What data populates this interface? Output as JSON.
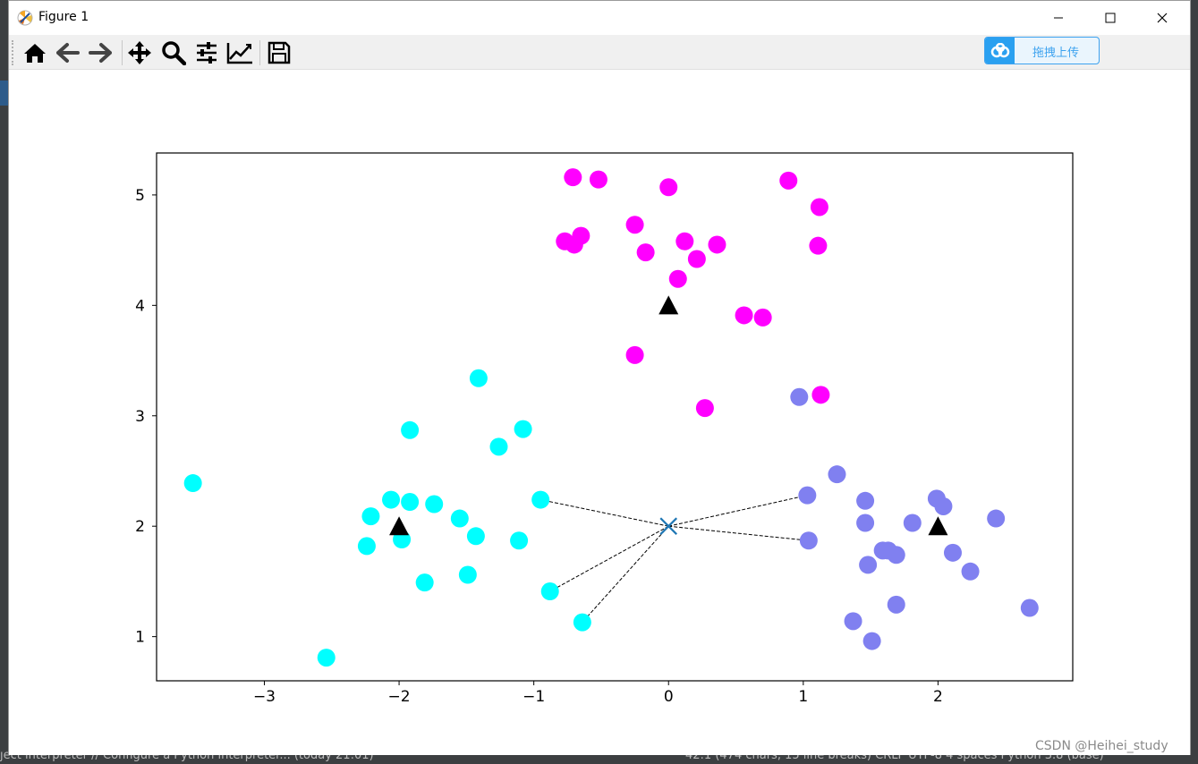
{
  "window": {
    "title": "Figure 1",
    "icons": [
      "matplotlib-icon",
      "minimize-icon",
      "maximize-icon",
      "close-icon"
    ]
  },
  "toolbar": {
    "buttons": [
      "home-icon",
      "back-icon",
      "forward-icon",
      "pan-icon",
      "zoom-icon",
      "configure-subplots-icon",
      "edit-axis-icon",
      "save-icon"
    ],
    "upload_label": "拖拽上传"
  },
  "ide": {
    "status_left": "ject interpreter // Configure a Python interpreter... (today 21:01)",
    "status_right": "42:1 (474 chars, 15 line breaks)   CRLF   UTF-8   4 spaces   Python 3.8 (base)"
  },
  "watermark": "CSDN @Heihei_study",
  "colors": {
    "cyan": "#00ffff",
    "magenta": "#ff00ff",
    "slate": "#8080f0",
    "center_marker": "#000000",
    "query_marker": "#1f77b4",
    "link_line": "#000000"
  },
  "chart_data": {
    "type": "scatter",
    "title": "",
    "xlabel": "",
    "ylabel": "",
    "xlim": [
      -3.8,
      3.0
    ],
    "ylim": [
      0.6,
      5.38
    ],
    "xticks": [
      -3,
      -2,
      -1,
      0,
      1,
      2
    ],
    "xtick_labels": [
      "−3",
      "−2",
      "−1",
      "0",
      "1",
      "2"
    ],
    "yticks": [
      1,
      2,
      3,
      4,
      5
    ],
    "ytick_labels": [
      "1",
      "2",
      "3",
      "4",
      "5"
    ],
    "grid": false,
    "legend": "none",
    "series": [
      {
        "color": "#00ffff",
        "points": [
          [
            -3.53,
            2.39
          ],
          [
            -2.54,
            0.81
          ],
          [
            -2.24,
            1.82
          ],
          [
            -2.21,
            2.09
          ],
          [
            -2.06,
            2.24
          ],
          [
            -1.98,
            1.88
          ],
          [
            -1.92,
            2.22
          ],
          [
            -1.92,
            2.87
          ],
          [
            -1.81,
            1.49
          ],
          [
            -1.74,
            2.2
          ],
          [
            -1.55,
            2.07
          ],
          [
            -1.49,
            1.56
          ],
          [
            -1.43,
            1.91
          ],
          [
            -1.41,
            3.34
          ],
          [
            -1.26,
            2.72
          ],
          [
            -1.11,
            1.87
          ],
          [
            -1.08,
            2.88
          ],
          [
            -0.95,
            2.24
          ],
          [
            -0.88,
            1.41
          ],
          [
            -0.64,
            1.13
          ]
        ]
      },
      {
        "color": "#ff00ff",
        "points": [
          [
            -0.71,
            5.16
          ],
          [
            -0.52,
            5.14
          ],
          [
            -0.77,
            4.58
          ],
          [
            -0.7,
            4.55
          ],
          [
            -0.65,
            4.63
          ],
          [
            -0.25,
            4.73
          ],
          [
            -0.17,
            4.48
          ],
          [
            0.0,
            5.07
          ],
          [
            0.07,
            4.24
          ],
          [
            0.12,
            4.58
          ],
          [
            0.21,
            4.42
          ],
          [
            0.36,
            4.55
          ],
          [
            0.56,
            3.91
          ],
          [
            0.7,
            3.89
          ],
          [
            0.89,
            5.13
          ],
          [
            1.12,
            4.89
          ],
          [
            1.11,
            4.54
          ],
          [
            -0.25,
            3.55
          ],
          [
            0.27,
            3.07
          ],
          [
            1.13,
            3.19
          ]
        ]
      },
      {
        "color": "#8080f0",
        "points": [
          [
            0.97,
            3.17
          ],
          [
            1.03,
            2.28
          ],
          [
            1.04,
            1.87
          ],
          [
            1.25,
            2.47
          ],
          [
            1.46,
            2.23
          ],
          [
            1.46,
            2.03
          ],
          [
            1.48,
            1.65
          ],
          [
            1.37,
            1.14
          ],
          [
            1.51,
            0.96
          ],
          [
            1.59,
            1.78
          ],
          [
            1.63,
            1.78
          ],
          [
            1.69,
            1.74
          ],
          [
            1.69,
            1.29
          ],
          [
            1.81,
            2.03
          ],
          [
            1.99,
            2.25
          ],
          [
            2.04,
            2.18
          ],
          [
            2.11,
            1.76
          ],
          [
            2.24,
            1.59
          ],
          [
            2.43,
            2.07
          ],
          [
            2.68,
            1.26
          ]
        ]
      }
    ],
    "centers": [
      [
        -2,
        2
      ],
      [
        0,
        4
      ],
      [
        2,
        2
      ]
    ],
    "query_point": [
      0,
      2
    ],
    "neighbor_links": [
      [
        -0.95,
        2.24
      ],
      [
        -0.88,
        1.41
      ],
      [
        -0.64,
        1.13
      ],
      [
        1.03,
        2.28
      ],
      [
        1.04,
        1.87
      ]
    ]
  }
}
